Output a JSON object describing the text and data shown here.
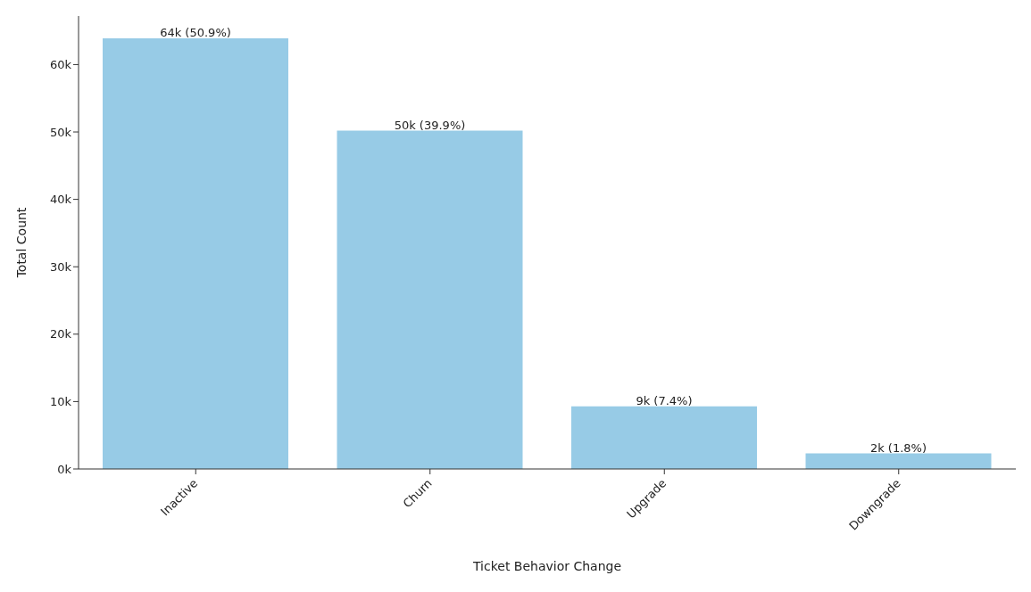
{
  "chart_data": {
    "type": "bar",
    "xlabel": "Ticket Behavior Change",
    "ylabel": "Total Count",
    "categories": [
      "Inactive",
      "Churn",
      "Upgrade",
      "Downgrade"
    ],
    "values": [
      63900,
      50200,
      9300,
      2300
    ],
    "value_labels": [
      "64k (50.9%)",
      "50k (39.9%)",
      "9k (7.4%)",
      "2k (1.8%)"
    ],
    "color": "#97cbe6",
    "ylim": [
      0,
      67200
    ],
    "yticks": [
      {
        "value": 0,
        "label": "0k"
      },
      {
        "value": 10000,
        "label": "10k"
      },
      {
        "value": 20000,
        "label": "20k"
      },
      {
        "value": 30000,
        "label": "30k"
      },
      {
        "value": 40000,
        "label": "40k"
      },
      {
        "value": 50000,
        "label": "50k"
      },
      {
        "value": 60000,
        "label": "60k"
      }
    ],
    "grid": false
  }
}
